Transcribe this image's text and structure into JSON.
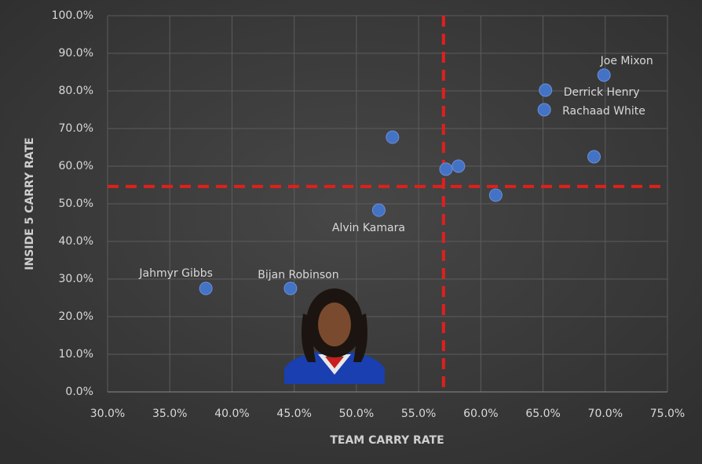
{
  "chart_data": {
    "type": "scatter",
    "x_label": "TEAM CARRY RATE",
    "y_label": "INSIDE 5 CARRY RATE",
    "x": [
      69.9,
      65.2,
      65.1,
      69.1,
      52.9,
      57.2,
      58.2,
      61.2,
      51.8,
      37.9,
      44.7
    ],
    "values": [
      84.2,
      80.2,
      75.0,
      62.5,
      67.7,
      59.2,
      60.0,
      52.3,
      48.3,
      27.5,
      27.5
    ],
    "labels": [
      "Joe Mixon",
      "Derrick Henry",
      "Rachaad White",
      null,
      null,
      null,
      null,
      null,
      "Alvin Kamara",
      "Jahmyr Gibbs",
      "Bijan Robinson"
    ],
    "color": "#4472c4",
    "xlim": [
      30,
      75
    ],
    "ylim": [
      0,
      100
    ],
    "xticks": [
      {
        "value": 30,
        "label": "30.0%"
      },
      {
        "value": 35,
        "label": "35.0%"
      },
      {
        "value": 40,
        "label": "40.0%"
      },
      {
        "value": 45,
        "label": "45.0%"
      },
      {
        "value": 50,
        "label": "50.0%"
      },
      {
        "value": 55,
        "label": "55.0%"
      },
      {
        "value": 60,
        "label": "60.0%"
      },
      {
        "value": 65,
        "label": "65.0%"
      },
      {
        "value": 70,
        "label": "70.0%"
      },
      {
        "value": 75,
        "label": "75.0%"
      }
    ],
    "yticks": [
      {
        "value": 0,
        "label": "0.0%"
      },
      {
        "value": 10,
        "label": "10.0%"
      },
      {
        "value": 20,
        "label": "20.0%"
      },
      {
        "value": 30,
        "label": "30.0%"
      },
      {
        "value": 40,
        "label": "40.0%"
      },
      {
        "value": 50,
        "label": "50.0%"
      },
      {
        "value": 60,
        "label": "60.0%"
      },
      {
        "value": 70,
        "label": "70.0%"
      },
      {
        "value": 80,
        "label": "80.0%"
      },
      {
        "value": 90,
        "label": "90.0%"
      },
      {
        "value": 100,
        "label": "100.0%"
      }
    ],
    "grid": true,
    "reference_lines": {
      "x": 57.0,
      "y": 54.6,
      "color": "#e0201c"
    }
  }
}
